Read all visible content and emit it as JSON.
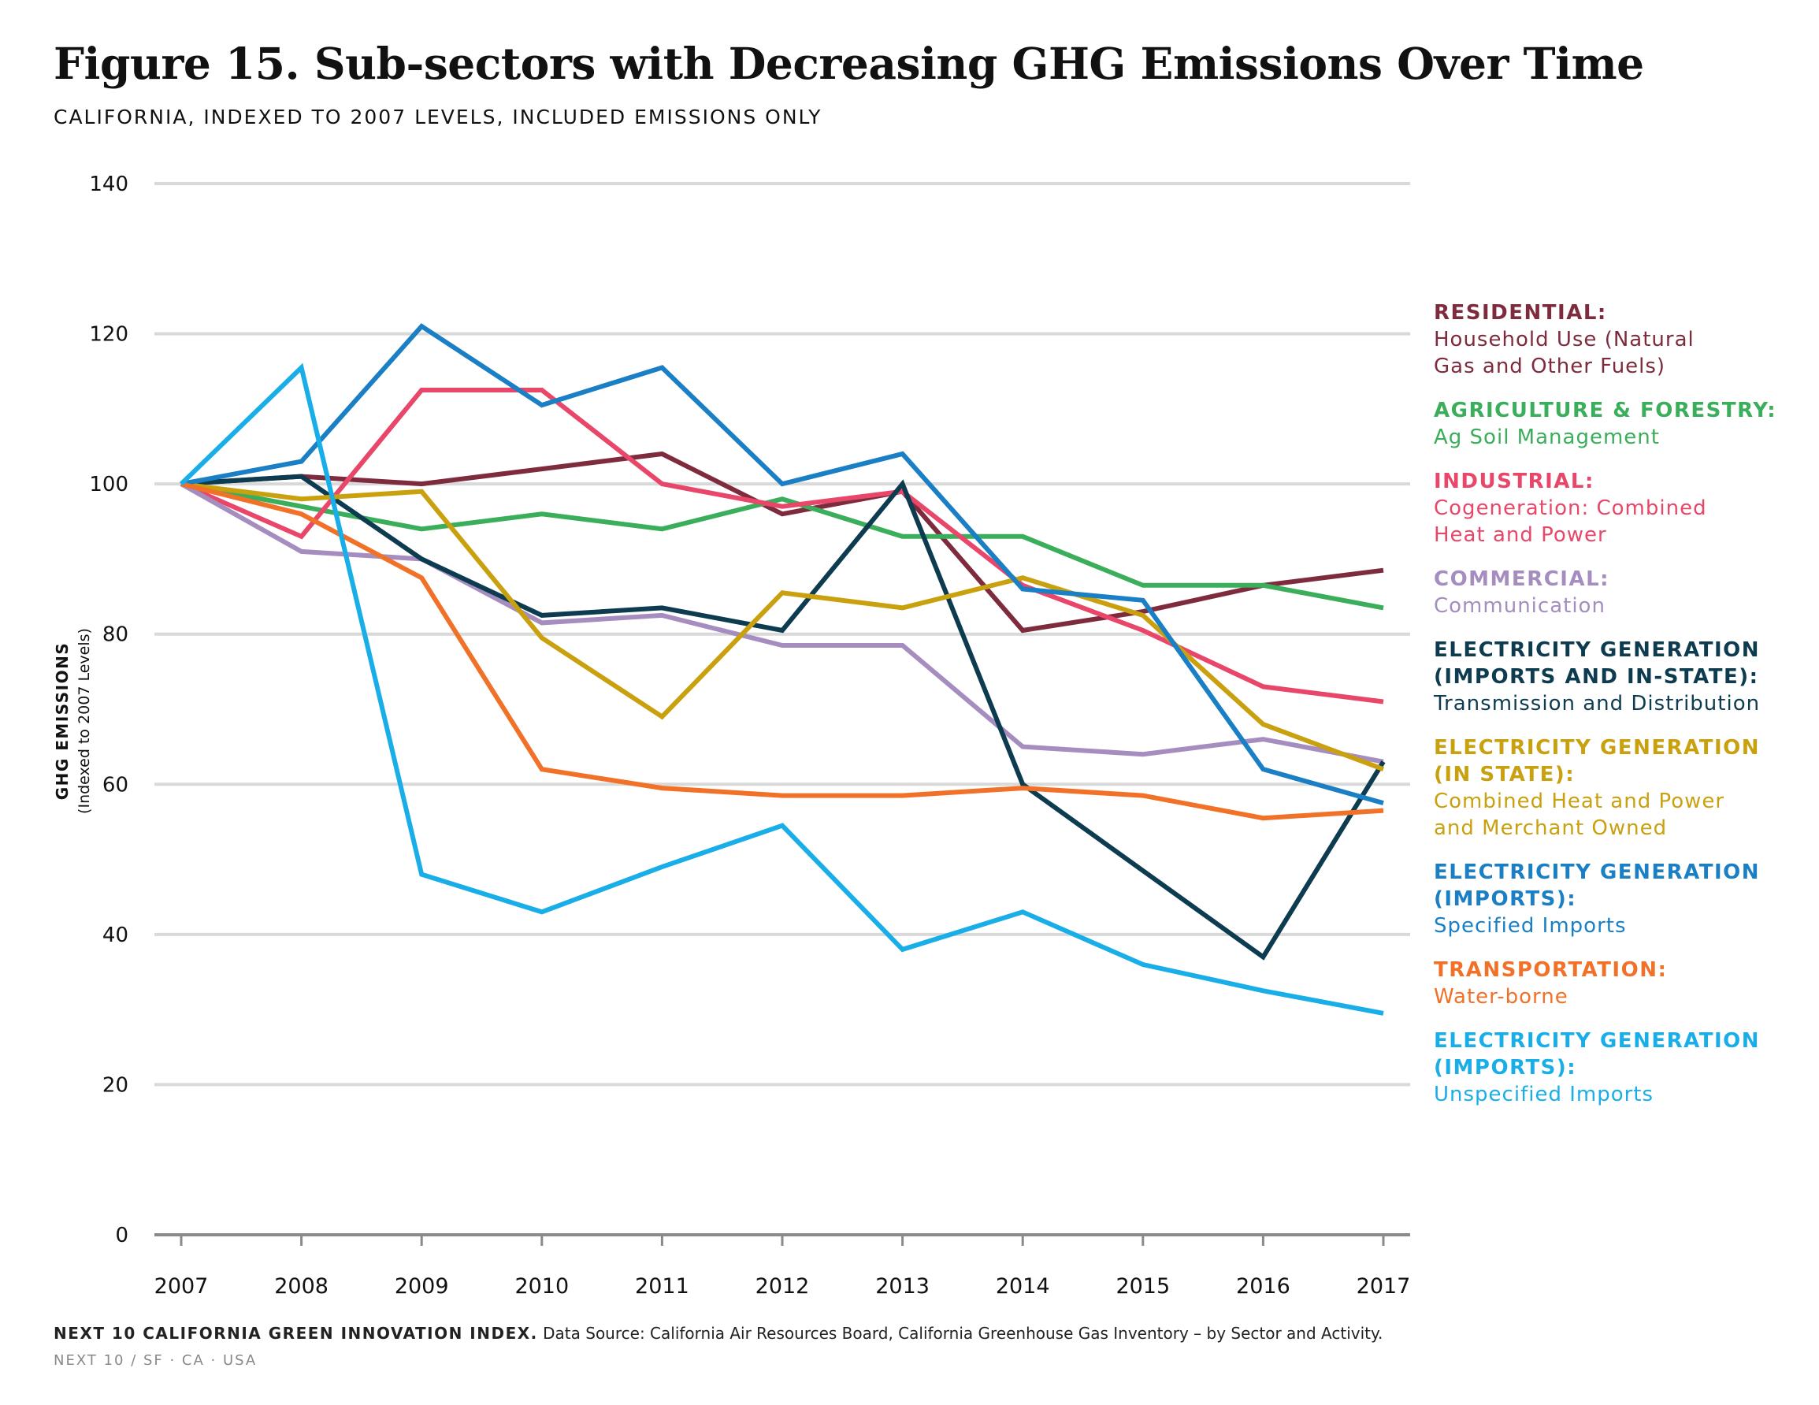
{
  "title": "Figure 15. Sub-sectors with Decreasing GHG Emissions Over Time",
  "subtitle": "CALIFORNIA, INDEXED TO 2007 LEVELS, INCLUDED EMISSIONS ONLY",
  "footer": {
    "source_label": "NEXT 10 CALIFORNIA GREEN INNOVATION INDEX.",
    "source_text": " Data Source: California Air Resources Board, California Greenhouse Gas Inventory – by Sector and Activity.",
    "org": "NEXT 10  /  SF · CA · USA"
  },
  "chart_data": {
    "type": "line",
    "title": "Figure 15. Sub-sectors with Decreasing GHG Emissions Over Time",
    "ylabel": "GHG EMISSIONS",
    "ylabel_sub": "(Indexed to 2007 Levels)",
    "ylim": [
      0,
      140
    ],
    "yticks": [
      0,
      20,
      40,
      60,
      80,
      100,
      120,
      140
    ],
    "x": [
      "2007",
      "2008",
      "2009",
      "2010",
      "2011",
      "2012",
      "2013",
      "2014",
      "2015",
      "2016",
      "2017"
    ],
    "grid": true,
    "legend_position": "right",
    "series": [
      {
        "name": "RESIDENTIAL:",
        "detail": "Household Use (Natural Gas and Other Fuels)",
        "detail_lines": [
          "Household Use (Natural",
          "Gas and Other Fuels)"
        ],
        "color": "#7d2b3d",
        "values": [
          100,
          101,
          100,
          102,
          104,
          96,
          99,
          80.5,
          83,
          86.5,
          88.5
        ]
      },
      {
        "name": "AGRICULTURE & FORESTRY:",
        "detail": "Ag Soil Management",
        "detail_lines": [
          "Ag Soil Management"
        ],
        "color": "#3aae5a",
        "values": [
          100,
          97,
          94,
          96,
          94,
          98,
          93,
          93,
          86.5,
          86.5,
          83.5
        ]
      },
      {
        "name": "INDUSTRIAL:",
        "detail": "Cogeneration: Combined Heat and Power",
        "detail_lines": [
          "Cogeneration: Combined",
          "Heat and Power"
        ],
        "color": "#e8476a",
        "values": [
          100,
          93,
          112.5,
          112.5,
          100,
          97,
          99,
          86.5,
          80.5,
          73,
          71
        ]
      },
      {
        "name": "COMMERCIAL:",
        "detail": "Communication",
        "detail_lines": [
          "Communication"
        ],
        "color": "#a58dbf",
        "values": [
          100,
          91,
          90,
          81.5,
          82.5,
          78.5,
          78.5,
          65,
          64,
          66,
          63
        ]
      },
      {
        "name": "ELECTRICITY GENERATION (IMPORTS AND IN-STATE):",
        "name_lines": [
          "ELECTRICITY GENERATION",
          "(IMPORTS AND IN-STATE):"
        ],
        "detail": "Transmission and Distribution",
        "detail_lines": [
          "Transmission and Distribution"
        ],
        "color": "#0d3b4f",
        "values": [
          100,
          101,
          90,
          82.5,
          83.5,
          80.5,
          100,
          60,
          48.5,
          37,
          63
        ]
      },
      {
        "name": "ELECTRICITY GENERATION (IN STATE):",
        "name_lines": [
          "ELECTRICITY GENERATION",
          "(IN STATE):"
        ],
        "detail": "Combined Heat and Power and Merchant Owned",
        "detail_lines": [
          "Combined Heat and Power",
          "and Merchant Owned"
        ],
        "color": "#c9a10f",
        "values": [
          100,
          98,
          99,
          79.5,
          69,
          85.5,
          83.5,
          87.5,
          82.5,
          68,
          62
        ]
      },
      {
        "name": "ELECTRICITY GENERATION (IMPORTS):",
        "name_lines": [
          "ELECTRICITY GENERATION",
          "(IMPORTS):"
        ],
        "detail": "Specified Imports",
        "detail_lines": [
          "Specified Imports"
        ],
        "color": "#1a7fc4",
        "values": [
          100,
          103,
          121,
          110.5,
          115.5,
          100,
          104,
          86,
          84.5,
          62,
          57.5
        ]
      },
      {
        "name": "TRANSPORTATION:",
        "detail": "Water-borne",
        "detail_lines": [
          "Water-borne"
        ],
        "color": "#f07127",
        "values": [
          100,
          96,
          87.5,
          62,
          59.5,
          58.5,
          58.5,
          59.5,
          58.5,
          55.5,
          56.5
        ]
      },
      {
        "name": "ELECTRICITY GENERATION (IMPORTS):",
        "name_lines": [
          "ELECTRICITY GENERATION",
          "(IMPORTS):"
        ],
        "detail": "Unspecified Imports",
        "detail_lines": [
          "Unspecified Imports"
        ],
        "color": "#1aaee8",
        "values": [
          100,
          115.5,
          48,
          43,
          49,
          54.5,
          38,
          43,
          36,
          32.5,
          29.5
        ]
      }
    ]
  }
}
